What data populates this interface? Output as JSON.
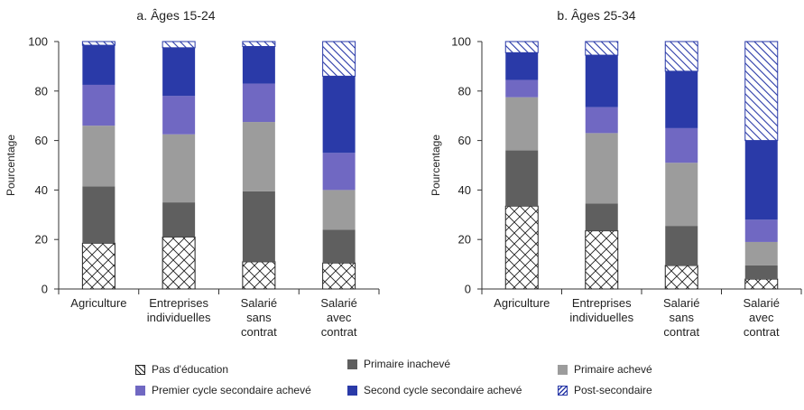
{
  "chart_data": [
    {
      "type": "bar",
      "stacked": true,
      "title": "a. Âges 15-24",
      "ylabel": "Pourcentage",
      "ylim": [
        0,
        100
      ],
      "yticks": [
        0,
        20,
        40,
        60,
        80,
        100
      ],
      "categories": [
        [
          "Agriculture"
        ],
        [
          "Entreprises",
          "individuelles"
        ],
        [
          "Salarié",
          "sans",
          "contrat"
        ],
        [
          "Salarié",
          "avec",
          "contrat"
        ]
      ],
      "series": [
        {
          "name": "Pas d'éducation",
          "values": [
            18.5,
            21,
            11,
            10.5
          ]
        },
        {
          "name": "Primaire inachevé",
          "values": [
            23,
            14,
            28.5,
            13.5
          ]
        },
        {
          "name": "Primaire achevé",
          "values": [
            24.5,
            27.5,
            28,
            16
          ]
        },
        {
          "name": "Premier cycle secondaire achevé",
          "values": [
            16.5,
            15.5,
            15.5,
            15
          ]
        },
        {
          "name": "Second cycle secondaire achevé",
          "values": [
            16,
            19.5,
            15,
            31
          ]
        },
        {
          "name": "Post-secondaire",
          "values": [
            1.5,
            2.5,
            2,
            14
          ]
        }
      ]
    },
    {
      "type": "bar",
      "stacked": true,
      "title": "b. Âges 25-34",
      "ylabel": "Pourcentage",
      "ylim": [
        0,
        100
      ],
      "yticks": [
        0,
        20,
        40,
        60,
        80,
        100
      ],
      "categories": [
        [
          "Agriculture"
        ],
        [
          "Entreprises",
          "individuelles"
        ],
        [
          "Salarié",
          "sans",
          "contrat"
        ],
        [
          "Salarié",
          "avec",
          "contrat"
        ]
      ],
      "series": [
        {
          "name": "Pas d'éducation",
          "values": [
            33.5,
            23.5,
            9.5,
            4
          ]
        },
        {
          "name": "Primaire inachevé",
          "values": [
            22.5,
            11,
            16,
            5.5
          ]
        },
        {
          "name": "Primaire achevé",
          "values": [
            21.5,
            28.5,
            25.5,
            9.5
          ]
        },
        {
          "name": "Premier cycle secondaire achevé",
          "values": [
            7,
            10.5,
            14,
            9
          ]
        },
        {
          "name": "Second cycle secondaire achevé",
          "values": [
            11,
            21,
            23,
            32
          ]
        },
        {
          "name": "Post-secondaire",
          "values": [
            4.5,
            5.5,
            12,
            40
          ]
        }
      ]
    }
  ],
  "legend": [
    {
      "label": "Pas d'éducation",
      "color": "#ffffff",
      "pattern": "crosshatch"
    },
    {
      "label": "Primaire inachevé",
      "color": "#5f5f5f",
      "pattern": "solid"
    },
    {
      "label": "Primaire achevé",
      "color": "#9c9c9c",
      "pattern": "solid"
    },
    {
      "label": "Premier cycle secondaire achevé",
      "color": "#7068c2",
      "pattern": "solid"
    },
    {
      "label": "Second cycle secondaire achevé",
      "color": "#2a3aa8",
      "pattern": "solid"
    },
    {
      "label": "Post-secondaire",
      "color": "#ffffff",
      "pattern": "diagonal",
      "pattern_color": "#2a3aa8"
    }
  ]
}
